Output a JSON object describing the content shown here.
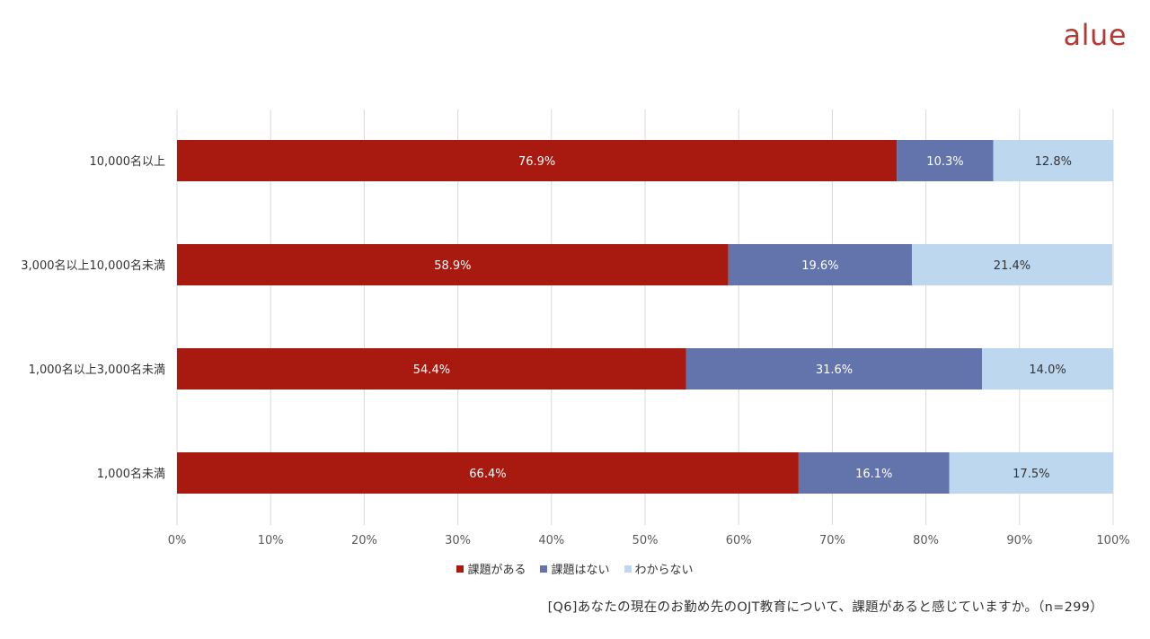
{
  "brand": {
    "logo_text": "alue"
  },
  "chart_data": {
    "type": "bar",
    "orientation": "horizontal",
    "stacked": true,
    "categories": [
      "10,000名以上",
      "3,000名以上10,000名未満",
      "1,000名以上3,000名未満",
      "1,000名未満"
    ],
    "series": [
      {
        "name": "課題がある",
        "values": [
          76.9,
          58.9,
          54.4,
          66.4
        ],
        "color": "#a8190f",
        "label_color": "#ffffff"
      },
      {
        "name": "課題はない",
        "values": [
          10.3,
          19.6,
          31.6,
          16.1
        ],
        "color": "#6374ad",
        "label_color": "#ffffff"
      },
      {
        "name": "わからない",
        "values": [
          12.8,
          21.4,
          14.0,
          17.5
        ],
        "color": "#bdd7ee",
        "label_color": "#333333"
      }
    ],
    "xlim": [
      0,
      100
    ],
    "x_ticks": [
      "0%",
      "10%",
      "20%",
      "30%",
      "40%",
      "50%",
      "60%",
      "70%",
      "80%",
      "90%",
      "100%"
    ],
    "grid": true,
    "legend_position": "bottom"
  },
  "footnote": "[Q6]あなたの現在のお勤め先のOJT教育について、課題があると感じていますか。（n=299）"
}
